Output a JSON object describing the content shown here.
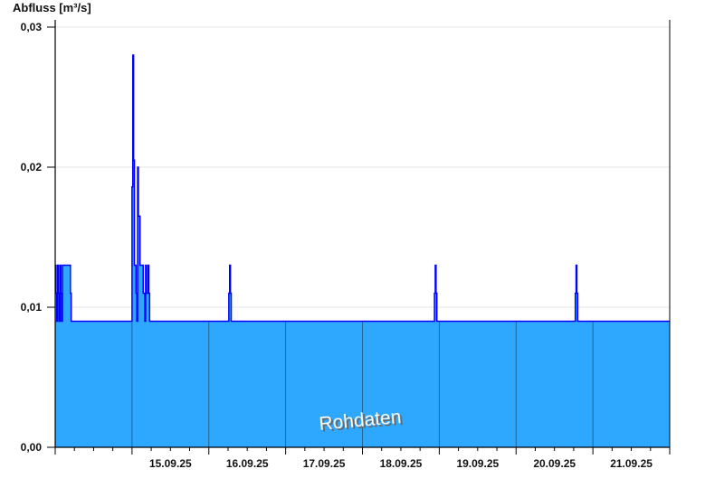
{
  "chart_data": {
    "type": "area",
    "title": "",
    "ylabel": "Abfluss [m³/s]",
    "xlabel": "",
    "xlim": [
      "2025-09-14T00:00",
      "2025-09-22T00:00"
    ],
    "ylim": [
      0,
      0.03
    ],
    "yticks": [
      0,
      0.01,
      0.02,
      0.03
    ],
    "ytick_labels": [
      "0,00",
      "0,01",
      "0,02",
      "0,03"
    ],
    "xtick_labels": [
      "15.09.25",
      "16.09.25",
      "17.09.25",
      "18.09.25",
      "19.09.25",
      "20.09.25",
      "21.09.25"
    ],
    "grid": true,
    "step": true,
    "watermark": "Rohdaten",
    "colors": {
      "fill": "#2ea8ff",
      "line": "#0000ff",
      "day_separator": "#1f6694",
      "grid": "#e6e6e6"
    },
    "series": [
      {
        "points": [
          [
            "2025-09-14T00:00",
            0.013
          ],
          [
            "2025-09-14T00:15",
            0.011
          ],
          [
            "2025-09-14T00:30",
            0.009
          ],
          [
            "2025-09-14T00:45",
            0.013
          ],
          [
            "2025-09-14T01:00",
            0.011
          ],
          [
            "2025-09-14T01:15",
            0.009
          ],
          [
            "2025-09-14T01:30",
            0.013
          ],
          [
            "2025-09-14T01:45",
            0.011
          ],
          [
            "2025-09-14T02:00",
            0.009
          ],
          [
            "2025-09-14T02:15",
            0.013
          ],
          [
            "2025-09-14T04:45",
            0.011
          ],
          [
            "2025-09-14T05:00",
            0.009
          ],
          [
            "2025-09-15T00:00",
            0.0186
          ],
          [
            "2025-09-15T00:15",
            0.028
          ],
          [
            "2025-09-15T00:30",
            0.0205
          ],
          [
            "2025-09-15T00:45",
            0.013
          ],
          [
            "2025-09-15T01:15",
            0.011
          ],
          [
            "2025-09-15T01:30",
            0.009
          ],
          [
            "2025-09-15T01:45",
            0.02
          ],
          [
            "2025-09-15T02:00",
            0.0165
          ],
          [
            "2025-09-15T02:30",
            0.013
          ],
          [
            "2025-09-15T03:30",
            0.011
          ],
          [
            "2025-09-15T04:00",
            0.009
          ],
          [
            "2025-09-15T04:15",
            0.013
          ],
          [
            "2025-09-15T04:30",
            0.011
          ],
          [
            "2025-09-15T05:00",
            0.013
          ],
          [
            "2025-09-15T05:15",
            0.011
          ],
          [
            "2025-09-15T05:30",
            0.009
          ],
          [
            "2025-09-16T06:15",
            0.011
          ],
          [
            "2025-09-16T06:30",
            0.013
          ],
          [
            "2025-09-16T06:45",
            0.011
          ],
          [
            "2025-09-16T07:00",
            0.009
          ],
          [
            "2025-09-18T22:30",
            0.011
          ],
          [
            "2025-09-18T22:45",
            0.013
          ],
          [
            "2025-09-18T23:00",
            0.011
          ],
          [
            "2025-09-18T23:15",
            0.009
          ],
          [
            "2025-09-20T18:30",
            0.011
          ],
          [
            "2025-09-20T18:45",
            0.013
          ],
          [
            "2025-09-20T19:00",
            0.011
          ],
          [
            "2025-09-20T19:15",
            0.009
          ]
        ]
      }
    ]
  }
}
